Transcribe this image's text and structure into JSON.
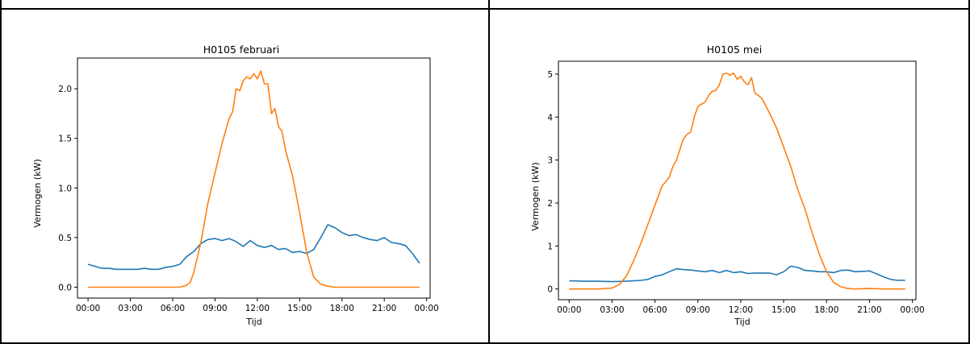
{
  "colors": {
    "series_blue": "#1f77b4",
    "series_orange": "#ff7f0e"
  },
  "chart_data": [
    {
      "type": "line",
      "title": "H0105 februari",
      "xlabel": "Tijd",
      "ylabel": "Vermogen (kW)",
      "xlim": [
        -0.75,
        24.25
      ],
      "ylim": [
        -0.11,
        2.31
      ],
      "xticks": [
        "00:00",
        "03:00",
        "06:00",
        "09:00",
        "12:00",
        "15:00",
        "18:00",
        "21:00",
        "00:00"
      ],
      "yticks": [
        "0.0",
        "0.5",
        "1.0",
        "1.5",
        "2.0"
      ],
      "grid": false,
      "series": [
        {
          "color": "#1f77b4",
          "x": [
            0,
            0.5,
            1,
            1.5,
            2,
            2.5,
            3,
            3.5,
            4,
            4.5,
            5,
            5.5,
            6,
            6.5,
            7,
            7.5,
            8,
            8.5,
            9,
            9.5,
            10,
            10.5,
            11,
            11.5,
            12,
            12.5,
            13,
            13.5,
            14,
            14.5,
            15,
            15.5,
            16,
            16.5,
            17,
            17.5,
            18,
            18.5,
            19,
            19.5,
            20,
            20.5,
            21,
            21.5,
            22,
            22.5,
            23,
            23.5
          ],
          "y": [
            0.23,
            0.21,
            0.19,
            0.19,
            0.18,
            0.18,
            0.18,
            0.18,
            0.19,
            0.18,
            0.18,
            0.2,
            0.21,
            0.23,
            0.31,
            0.36,
            0.44,
            0.48,
            0.49,
            0.47,
            0.49,
            0.46,
            0.41,
            0.47,
            0.42,
            0.4,
            0.42,
            0.38,
            0.39,
            0.35,
            0.36,
            0.34,
            0.38,
            0.5,
            0.63,
            0.6,
            0.55,
            0.52,
            0.53,
            0.5,
            0.48,
            0.47,
            0.5,
            0.45,
            0.44,
            0.42,
            0.34,
            0.24
          ]
        },
        {
          "color": "#ff7f0e",
          "x": [
            0,
            1,
            2,
            3,
            4,
            5,
            6,
            6.5,
            7,
            7.25,
            7.5,
            8,
            8.5,
            9,
            9.5,
            10,
            10.25,
            10.5,
            10.75,
            11,
            11.25,
            11.5,
            11.75,
            12,
            12.25,
            12.5,
            12.75,
            13,
            13.25,
            13.5,
            13.75,
            14,
            14.5,
            15,
            15.5,
            16,
            16.5,
            17,
            17.5,
            18,
            19,
            20,
            21,
            22,
            23,
            23.5
          ],
          "y": [
            0,
            0,
            0,
            0,
            0,
            0,
            0,
            0,
            0.02,
            0.05,
            0.15,
            0.45,
            0.85,
            1.15,
            1.45,
            1.7,
            1.77,
            2.0,
            1.98,
            2.08,
            2.12,
            2.1,
            2.15,
            2.1,
            2.18,
            2.05,
            2.05,
            1.75,
            1.8,
            1.62,
            1.57,
            1.38,
            1.12,
            0.75,
            0.35,
            0.1,
            0.03,
            0.01,
            0,
            0,
            0,
            0,
            0,
            0,
            0,
            0
          ]
        }
      ]
    },
    {
      "type": "line",
      "title": "H0105 mei",
      "xlabel": "Tijd",
      "ylabel": "Vermogen (kW)",
      "xlim": [
        -0.75,
        24.25
      ],
      "ylim": [
        -0.25,
        5.3
      ],
      "xticks": [
        "00:00",
        "03:00",
        "06:00",
        "09:00",
        "12:00",
        "15:00",
        "18:00",
        "21:00",
        "00:00"
      ],
      "yticks": [
        "0",
        "1",
        "2",
        "3",
        "4",
        "5"
      ],
      "grid": false,
      "series": [
        {
          "color": "#1f77b4",
          "x": [
            0,
            1,
            2,
            3,
            4,
            5,
            5.5,
            6,
            6.5,
            7,
            7.5,
            8,
            8.5,
            9,
            9.5,
            10,
            10.5,
            11,
            11.5,
            12,
            12.5,
            13,
            13.5,
            14,
            14.5,
            15,
            15.5,
            16,
            16.5,
            17,
            17.5,
            18,
            18.5,
            19,
            19.5,
            20,
            20.5,
            21,
            21.5,
            22,
            22.5,
            23,
            23.5
          ],
          "y": [
            0.19,
            0.18,
            0.18,
            0.17,
            0.18,
            0.2,
            0.22,
            0.29,
            0.33,
            0.4,
            0.47,
            0.45,
            0.44,
            0.42,
            0.4,
            0.43,
            0.38,
            0.43,
            0.38,
            0.4,
            0.36,
            0.37,
            0.37,
            0.37,
            0.33,
            0.4,
            0.53,
            0.5,
            0.43,
            0.42,
            0.4,
            0.4,
            0.38,
            0.43,
            0.44,
            0.4,
            0.41,
            0.42,
            0.35,
            0.28,
            0.22,
            0.2,
            0.2
          ]
        },
        {
          "color": "#ff7f0e",
          "x": [
            0,
            1,
            2,
            3,
            3.5,
            4,
            4.5,
            5,
            5.5,
            6,
            6.5,
            7,
            7.25,
            7.5,
            7.75,
            8,
            8.25,
            8.5,
            8.75,
            9,
            9.25,
            9.5,
            9.75,
            10,
            10.25,
            10.5,
            10.75,
            11,
            11.25,
            11.5,
            11.75,
            12,
            12.25,
            12.5,
            12.75,
            13,
            13.25,
            13.5,
            14,
            14.5,
            15,
            15.5,
            16,
            16.5,
            17,
            17.5,
            18,
            18.5,
            19,
            19.5,
            20,
            21,
            22,
            23,
            23.5
          ],
          "y": [
            0,
            0,
            0,
            0.02,
            0.1,
            0.3,
            0.65,
            1.05,
            1.5,
            1.95,
            2.4,
            2.6,
            2.85,
            3.0,
            3.25,
            3.5,
            3.6,
            3.65,
            4.0,
            4.25,
            4.3,
            4.35,
            4.5,
            4.6,
            4.62,
            4.75,
            5.0,
            5.02,
            4.98,
            5.02,
            4.88,
            4.95,
            4.82,
            4.75,
            4.92,
            4.55,
            4.5,
            4.42,
            4.1,
            3.75,
            3.3,
            2.85,
            2.3,
            1.85,
            1.3,
            0.8,
            0.4,
            0.15,
            0.05,
            0.01,
            0,
            0.01,
            0,
            0,
            0
          ]
        }
      ]
    }
  ]
}
